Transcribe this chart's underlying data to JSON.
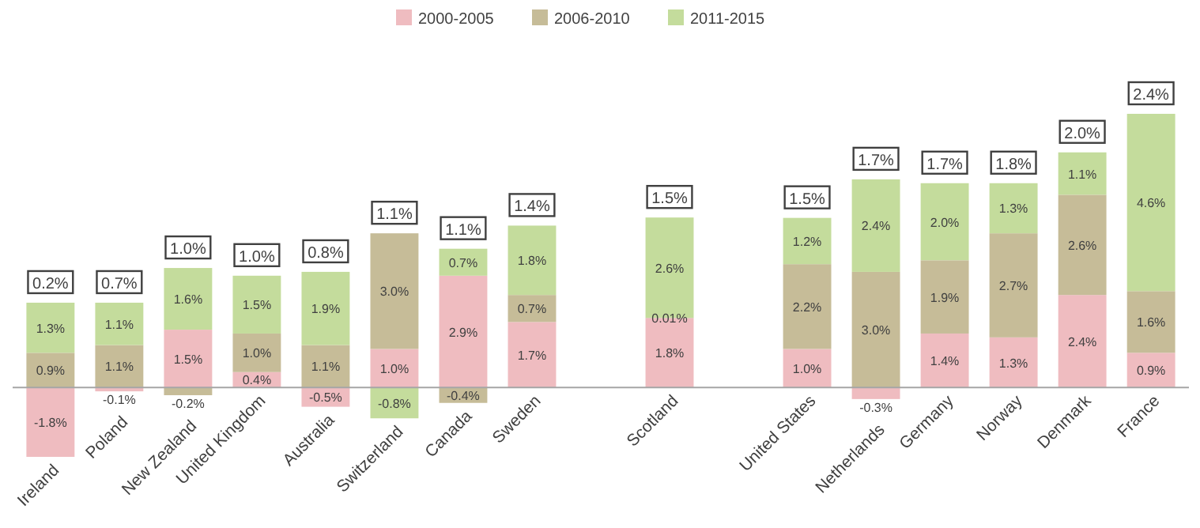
{
  "chart_data": {
    "type": "bar",
    "stacked": true,
    "legend": "top",
    "categories": [
      "Ireland",
      "Poland",
      "New Zealand",
      "United Kingdom",
      "Australia",
      "Switzerland",
      "Canada",
      "Sweden",
      null,
      "Scotland",
      null,
      "United States",
      "Netherlands",
      "Germany",
      "Norway",
      "Denmark",
      "France"
    ],
    "series": [
      {
        "name": "2000-2005",
        "color": "#efbcc0",
        "values": [
          -1.8,
          -0.1,
          1.5,
          0.4,
          -0.5,
          1.0,
          2.9,
          1.7,
          null,
          1.8,
          null,
          1.0,
          -0.3,
          1.4,
          1.3,
          2.4,
          0.9
        ],
        "value_labels": [
          "-1.8%",
          "-0.1%",
          "1.5%",
          "0.4%",
          "-0.5%",
          "1.0%",
          "2.9%",
          "1.7%",
          null,
          "1.8%",
          null,
          "1.0%",
          "-0.3%",
          "1.4%",
          "1.3%",
          "2.4%",
          "0.9%"
        ]
      },
      {
        "name": "2006-2010",
        "color": "#c6bc98",
        "values": [
          0.9,
          1.1,
          -0.2,
          1.0,
          1.1,
          3.0,
          -0.4,
          0.7,
          null,
          0.01,
          null,
          2.2,
          3.0,
          1.9,
          2.7,
          2.6,
          1.6
        ],
        "value_labels": [
          "0.9%",
          "1.1%",
          "-0.2%",
          "1.0%",
          "1.1%",
          "3.0%",
          "-0.4%",
          "0.7%",
          null,
          "0.01%",
          null,
          "2.2%",
          "3.0%",
          "1.9%",
          "2.7%",
          "2.6%",
          "1.6%"
        ]
      },
      {
        "name": "2011-2015",
        "color": "#c4dc9c",
        "values": [
          1.3,
          1.1,
          1.6,
          1.5,
          1.9,
          -0.8,
          0.7,
          1.8,
          null,
          2.6,
          null,
          1.2,
          2.4,
          2.0,
          1.3,
          1.1,
          4.6
        ],
        "value_labels": [
          "1.3%",
          "1.1%",
          "1.6%",
          "1.5%",
          "1.9%",
          "-0.8%",
          "0.7%",
          "1.8%",
          null,
          "2.6%",
          null,
          "1.2%",
          "2.4%",
          "2.0%",
          "1.3%",
          "1.1%",
          "4.6%"
        ]
      }
    ],
    "annotations": [
      "0.2%",
      "0.7%",
      "1.0%",
      "1.0%",
      "0.8%",
      "1.1%",
      "1.1%",
      "1.4%",
      "1.5%",
      "1.5%",
      "1.7%",
      "1.7%",
      "1.8%",
      "2.0%",
      "2.4%"
    ]
  }
}
